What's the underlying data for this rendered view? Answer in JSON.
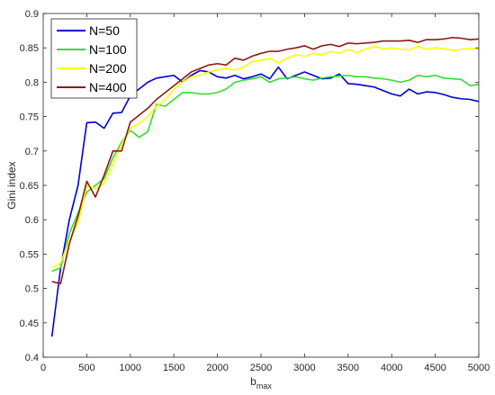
{
  "chart_data": {
    "type": "line",
    "xlabel": "b",
    "xlabel_sub": "max",
    "ylabel": "Gini index",
    "xlim": [
      0,
      5000
    ],
    "ylim": [
      0.4,
      0.9
    ],
    "xticks": [
      0,
      500,
      1000,
      1500,
      2000,
      2500,
      3000,
      3500,
      4000,
      4500,
      5000
    ],
    "yticks": [
      0.4,
      0.45,
      0.5,
      0.55,
      0.6,
      0.65,
      0.7,
      0.75,
      0.8,
      0.85,
      0.9
    ],
    "grid": false,
    "legend_position": "top-left",
    "x": [
      100,
      200,
      300,
      400,
      500,
      600,
      700,
      800,
      900,
      1000,
      1100,
      1200,
      1300,
      1400,
      1500,
      1600,
      1700,
      1800,
      1900,
      2000,
      2100,
      2200,
      2300,
      2400,
      2500,
      2600,
      2700,
      2800,
      2900,
      3000,
      3100,
      3200,
      3300,
      3400,
      3500,
      3600,
      3700,
      3800,
      3900,
      4000,
      4100,
      4200,
      4300,
      4400,
      4500,
      4600,
      4700,
      4800,
      4900,
      5000
    ],
    "series": [
      {
        "name": "N=50",
        "color": "#0000d6",
        "values": [
          0.43,
          0.53,
          0.6,
          0.65,
          0.741,
          0.742,
          0.733,
          0.755,
          0.756,
          0.78,
          0.79,
          0.8,
          0.806,
          0.808,
          0.81,
          0.8,
          0.81,
          0.817,
          0.815,
          0.808,
          0.806,
          0.81,
          0.805,
          0.808,
          0.812,
          0.805,
          0.822,
          0.805,
          0.81,
          0.815,
          0.81,
          0.805,
          0.806,
          0.812,
          0.798,
          0.797,
          0.795,
          0.793,
          0.788,
          0.783,
          0.78,
          0.79,
          0.783,
          0.786,
          0.785,
          0.782,
          0.778,
          0.776,
          0.775,
          0.772
        ]
      },
      {
        "name": "N=100",
        "color": "#33dd33",
        "values": [
          0.525,
          0.53,
          0.58,
          0.61,
          0.64,
          0.65,
          0.66,
          0.69,
          0.713,
          0.73,
          0.72,
          0.728,
          0.768,
          0.765,
          0.775,
          0.785,
          0.785,
          0.783,
          0.783,
          0.785,
          0.79,
          0.8,
          0.803,
          0.805,
          0.808,
          0.8,
          0.805,
          0.806,
          0.808,
          0.805,
          0.803,
          0.806,
          0.808,
          0.809,
          0.81,
          0.808,
          0.808,
          0.806,
          0.805,
          0.803,
          0.8,
          0.803,
          0.81,
          0.808,
          0.81,
          0.806,
          0.805,
          0.804,
          0.795,
          0.797
        ]
      },
      {
        "name": "N=200",
        "color": "#ffff00",
        "values": [
          0.53,
          0.537,
          0.57,
          0.595,
          0.65,
          0.645,
          0.653,
          0.68,
          0.71,
          0.733,
          0.74,
          0.75,
          0.765,
          0.775,
          0.79,
          0.8,
          0.808,
          0.81,
          0.815,
          0.818,
          0.82,
          0.818,
          0.822,
          0.83,
          0.832,
          0.835,
          0.828,
          0.835,
          0.84,
          0.838,
          0.842,
          0.84,
          0.845,
          0.842,
          0.848,
          0.843,
          0.848,
          0.852,
          0.848,
          0.85,
          0.848,
          0.847,
          0.852,
          0.848,
          0.85,
          0.849,
          0.846,
          0.848,
          0.849,
          0.848
        ]
      },
      {
        "name": "N=400",
        "color": "#8b1a10",
        "values": [
          0.51,
          0.507,
          0.565,
          0.605,
          0.656,
          0.633,
          0.665,
          0.7,
          0.7,
          0.742,
          0.752,
          0.762,
          0.775,
          0.785,
          0.795,
          0.805,
          0.815,
          0.82,
          0.825,
          0.827,
          0.825,
          0.835,
          0.832,
          0.838,
          0.842,
          0.845,
          0.845,
          0.848,
          0.85,
          0.853,
          0.848,
          0.853,
          0.855,
          0.852,
          0.857,
          0.856,
          0.857,
          0.858,
          0.86,
          0.86,
          0.86,
          0.861,
          0.858,
          0.862,
          0.862,
          0.863,
          0.865,
          0.864,
          0.862,
          0.863
        ]
      }
    ]
  }
}
